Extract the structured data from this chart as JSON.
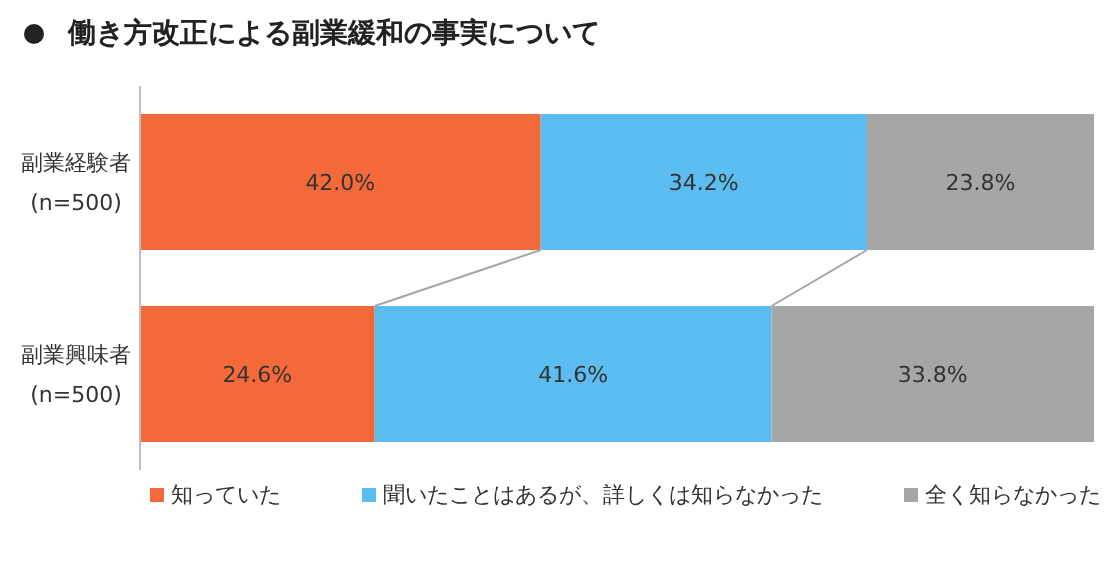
{
  "chart_data": {
    "type": "bar",
    "orientation": "horizontal",
    "stacked": true,
    "title": "働き方改正による副業緩和の事実について",
    "categories": [
      "副業経験者\n(n=500)",
      "副業興味者\n(n=500)"
    ],
    "series": [
      {
        "name": "知っていた",
        "color": "#f4693a",
        "values": [
          42.0,
          24.6
        ],
        "value_labels": [
          "42.0%",
          "24.6%"
        ]
      },
      {
        "name": "聞いたことはあるが、詳しくは知らなかった",
        "color": "#5bbdf0",
        "values": [
          34.2,
          41.6
        ],
        "value_labels": [
          "34.2%",
          "41.6%"
        ]
      },
      {
        "name": "全く知らなかった",
        "color": "#a6a6a6",
        "values": [
          23.8,
          33.8
        ],
        "value_labels": [
          "23.8%",
          "33.8%"
        ]
      }
    ],
    "xlim": [
      0,
      100
    ],
    "tick_labels": "y",
    "legend": "bottom",
    "grid": false
  }
}
